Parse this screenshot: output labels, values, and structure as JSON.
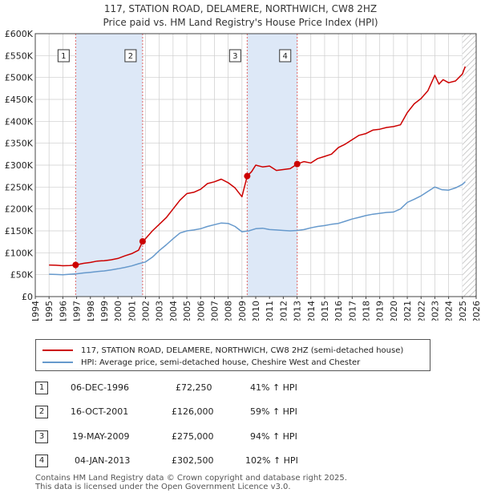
{
  "title_line1": "117, STATION ROAD, DELAMERE, NORTHWICH, CW8 2HZ",
  "title_line2": "Price paid vs. HM Land Registry's House Price Index (HPI)",
  "colors": {
    "property": "#cc0000",
    "hpi": "#6699cc",
    "shade": "#dde8f7",
    "marker_line": "#e06666",
    "grid": "#cccccc"
  },
  "legend": {
    "property_label": "117, STATION ROAD, DELAMERE, NORTHWICH, CW8 2HZ (semi-detached house)",
    "hpi_label": "HPI: Average price, semi-detached house, Cheshire West and Chester"
  },
  "sales": [
    {
      "num": "1",
      "date": "06-DEC-1996",
      "price": "£72,250",
      "hpi": "41% ↑ HPI"
    },
    {
      "num": "2",
      "date": "16-OCT-2001",
      "price": "£126,000",
      "hpi": "59% ↑ HPI"
    },
    {
      "num": "3",
      "date": "19-MAY-2009",
      "price": "£275,000",
      "hpi": "94% ↑ HPI"
    },
    {
      "num": "4",
      "date": "04-JAN-2013",
      "price": "£302,500",
      "hpi": "102% ↑ HPI"
    }
  ],
  "footer_line1": "Contains HM Land Registry data © Crown copyright and database right 2025.",
  "footer_line2": "This data is licensed under the Open Government Licence v3.0.",
  "chart_data": {
    "type": "line",
    "title": "117, STATION ROAD, DELAMERE, NORTHWICH, CW8 2HZ",
    "subtitle": "Price paid vs. HM Land Registry's House Price Index (HPI)",
    "xlim": [
      1994,
      2026
    ],
    "ylim": [
      0,
      600000
    ],
    "x_ticks": [
      1994,
      1995,
      1996,
      1997,
      1998,
      1999,
      2000,
      2001,
      2002,
      2003,
      2004,
      2005,
      2006,
      2007,
      2008,
      2009,
      2010,
      2011,
      2012,
      2013,
      2014,
      2015,
      2016,
      2017,
      2018,
      2019,
      2020,
      2021,
      2022,
      2023,
      2024,
      2025,
      2026
    ],
    "y_ticks": [
      0,
      50000,
      100000,
      150000,
      200000,
      250000,
      300000,
      350000,
      400000,
      450000,
      500000,
      550000,
      600000
    ],
    "y_tick_labels": [
      "£0",
      "£50K",
      "£100K",
      "£150K",
      "£200K",
      "£250K",
      "£300K",
      "£350K",
      "£400K",
      "£450K",
      "£500K",
      "£550K",
      "£600K"
    ],
    "shaded_ranges": [
      [
        1996.93,
        2001.79
      ],
      [
        2009.38,
        2013.01
      ],
      [
        2025.0,
        2026.0
      ]
    ],
    "hatched_range": [
      2025.0,
      2026.0
    ],
    "sale_markers": [
      {
        "label": "1",
        "x": 1996.93,
        "y": 72250
      },
      {
        "label": "2",
        "x": 2001.79,
        "y": 126000
      },
      {
        "label": "3",
        "x": 2009.38,
        "y": 275000
      },
      {
        "label": "4",
        "x": 2013.01,
        "y": 302500
      }
    ],
    "series": [
      {
        "name": "117, STATION ROAD, DELAMERE, NORTHWICH, CW8 2HZ (semi-detached house)",
        "color": "#cc0000",
        "x": [
          1995,
          1995.5,
          1996,
          1996.5,
          1996.93,
          1997.5,
          1998,
          1998.5,
          1999,
          1999.5,
          2000,
          2000.5,
          2001,
          2001.5,
          2001.79,
          2002,
          2002.5,
          2003,
          2003.5,
          2004,
          2004.5,
          2005,
          2005.5,
          2006,
          2006.5,
          2007,
          2007.5,
          2008,
          2008.5,
          2009,
          2009.3,
          2009.38,
          2009.7,
          2010,
          2010.5,
          2011,
          2011.5,
          2012,
          2012.5,
          2013.01,
          2013.5,
          2014,
          2014.5,
          2015,
          2015.5,
          2016,
          2016.5,
          2017,
          2017.5,
          2018,
          2018.5,
          2019,
          2019.5,
          2020,
          2020.5,
          2021,
          2021.5,
          2022,
          2022.5,
          2023,
          2023.3,
          2023.6,
          2024,
          2024.5,
          2025,
          2025.2
        ],
        "y": [
          72000,
          71500,
          70500,
          71000,
          72250,
          76000,
          78000,
          81000,
          82000,
          84000,
          87000,
          93000,
          98000,
          106000,
          126000,
          132000,
          150000,
          165000,
          180000,
          200000,
          220000,
          235000,
          238000,
          245000,
          258000,
          262000,
          268000,
          260000,
          248000,
          228000,
          265000,
          275000,
          285000,
          300000,
          296000,
          298000,
          288000,
          290000,
          292000,
          302500,
          308000,
          305000,
          315000,
          320000,
          325000,
          340000,
          348000,
          358000,
          368000,
          372000,
          380000,
          382000,
          386000,
          388000,
          392000,
          420000,
          440000,
          452000,
          470000,
          505000,
          485000,
          495000,
          488000,
          492000,
          508000,
          525000
        ]
      },
      {
        "name": "HPI: Average price, semi-detached house, Cheshire West and Chester",
        "color": "#6699cc",
        "x": [
          1995,
          1995.5,
          1996,
          1996.5,
          1997,
          1997.5,
          1998,
          1998.5,
          1999,
          1999.5,
          2000,
          2000.5,
          2001,
          2001.5,
          2002,
          2002.5,
          2003,
          2003.5,
          2004,
          2004.5,
          2005,
          2005.5,
          2006,
          2006.5,
          2007,
          2007.5,
          2008,
          2008.5,
          2009,
          2009.5,
          2010,
          2010.5,
          2011,
          2011.5,
          2012,
          2012.5,
          2013,
          2013.5,
          2014,
          2014.5,
          2015,
          2015.5,
          2016,
          2016.5,
          2017,
          2017.5,
          2018,
          2018.5,
          2019,
          2019.5,
          2020,
          2020.5,
          2021,
          2021.5,
          2022,
          2022.5,
          2023,
          2023.5,
          2024,
          2024.5,
          2025,
          2025.2
        ],
        "y": [
          51000,
          50500,
          50000,
          51000,
          52000,
          54000,
          55500,
          57000,
          58500,
          61000,
          63500,
          66500,
          70000,
          75000,
          79000,
          90000,
          105000,
          118000,
          132000,
          145000,
          150000,
          152000,
          155000,
          160000,
          164000,
          168000,
          167000,
          160000,
          148000,
          150000,
          155000,
          156000,
          153000,
          152000,
          151000,
          150000,
          151000,
          153000,
          157000,
          160000,
          162000,
          165000,
          167000,
          172000,
          177000,
          181000,
          185000,
          188000,
          190000,
          192000,
          193000,
          200000,
          215000,
          222000,
          230000,
          240000,
          250000,
          244000,
          243000,
          248000,
          256000,
          262000
        ]
      }
    ]
  }
}
